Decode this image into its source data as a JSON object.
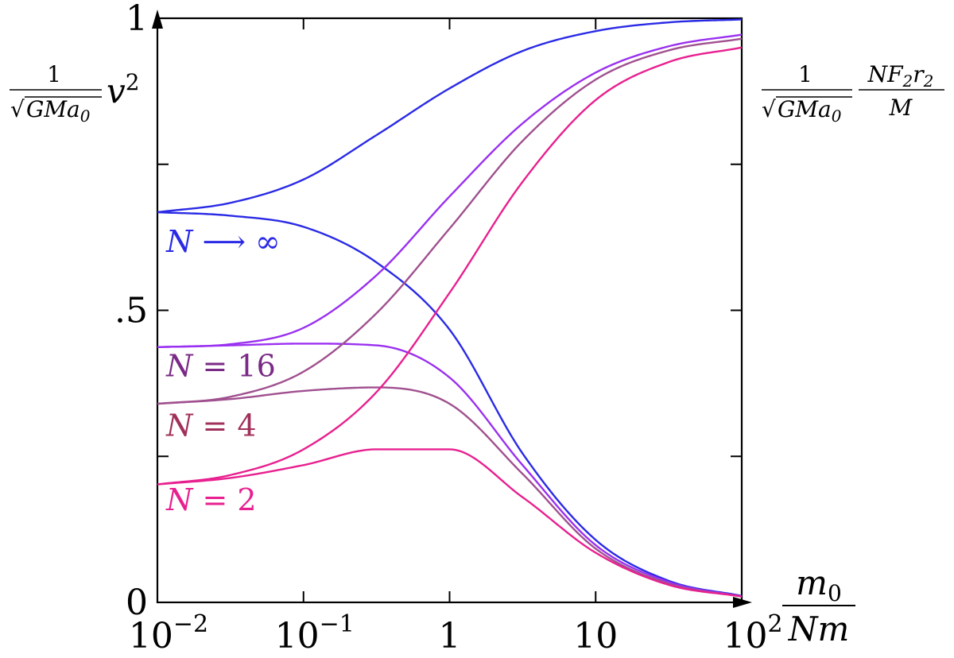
{
  "chart_data": {
    "type": "line",
    "x_scale": "log",
    "xlim": [
      0.01,
      100
    ],
    "ylim": [
      0,
      1
    ],
    "grid": false,
    "x_ticks": [
      {
        "value": 0.01,
        "label_base": "10",
        "label_exp": "−2"
      },
      {
        "value": 0.1,
        "label_base": "10",
        "label_exp": "−1"
      },
      {
        "value": 1,
        "label_base": "1",
        "label_exp": ""
      },
      {
        "value": 10,
        "label_base": "10",
        "label_exp": ""
      },
      {
        "value": 100,
        "label_base": "10",
        "label_exp": "2"
      }
    ],
    "y_ticks": [
      {
        "value": 0,
        "label": "0"
      },
      {
        "value": 0.25,
        "label": ""
      },
      {
        "value": 0.5,
        "label": ".5"
      },
      {
        "value": 0.75,
        "label": ""
      },
      {
        "value": 1,
        "label": "1"
      }
    ],
    "xlabel": {
      "numerator": "m",
      "numerator_sub": "0",
      "denominator": "Nm"
    },
    "ylabel_left": {
      "coef_num": "1",
      "coef_den": "GMa",
      "coef_den_sub": "0",
      "var": "v",
      "var_exp": "2"
    },
    "ylabel_right": {
      "coef_num": "1",
      "coef_den": "GMa",
      "coef_den_sub": "0",
      "num": "NF",
      "num_sub1": "2",
      "num_mid": "r",
      "num_sub2": "2",
      "den": "M"
    },
    "x_samples": [
      0.01,
      0.0316,
      0.1,
      0.316,
      1,
      3.16,
      10,
      31.6,
      100
    ],
    "series": [
      {
        "label": "N ⟶ ∞",
        "color": "#2a2ae6",
        "kind": "v2",
        "values": [
          0.668,
          0.684,
          0.724,
          0.8,
          0.88,
          0.944,
          0.978,
          0.993,
          0.998
        ]
      },
      {
        "label": "N ⟶ ∞",
        "color": "#2a2ae6",
        "kind": "force",
        "values": [
          0.668,
          0.662,
          0.643,
          0.582,
          0.467,
          0.255,
          0.107,
          0.037,
          0.011
        ]
      },
      {
        "label": "N = 16",
        "color": "#9a30f0",
        "kind": "v2",
        "values": [
          0.437,
          0.442,
          0.47,
          0.56,
          0.695,
          0.82,
          0.907,
          0.952,
          0.972
        ]
      },
      {
        "label": "N = 16",
        "color": "#9a30f0",
        "kind": "force",
        "values": [
          0.437,
          0.44,
          0.443,
          0.44,
          0.385,
          0.235,
          0.098,
          0.035,
          0.01
        ]
      },
      {
        "label": "N = 4",
        "color": "#a0508f",
        "kind": "v2",
        "values": [
          0.34,
          0.352,
          0.395,
          0.495,
          0.64,
          0.79,
          0.895,
          0.945,
          0.965
        ]
      },
      {
        "label": "N = 4",
        "color": "#a0508f",
        "kind": "force",
        "values": [
          0.34,
          0.348,
          0.362,
          0.368,
          0.34,
          0.22,
          0.092,
          0.032,
          0.01
        ]
      },
      {
        "label": "N = 2",
        "color": "#e8208f",
        "kind": "v2",
        "values": [
          0.202,
          0.218,
          0.262,
          0.36,
          0.53,
          0.72,
          0.86,
          0.925,
          0.95
        ]
      },
      {
        "label": "N = 2",
        "color": "#e8208f",
        "kind": "force",
        "values": [
          0.202,
          0.213,
          0.235,
          0.262,
          0.262,
          0.18,
          0.085,
          0.03,
          0.01
        ]
      }
    ],
    "annotations": [
      {
        "text": "N ⟶ ∞",
        "color": "#2a2ae6",
        "anchor_x": 0.0115,
        "anchor_y": 0.6
      },
      {
        "text": "N = 16",
        "color": "#7a2a86",
        "anchor_x": 0.0115,
        "anchor_y": 0.387
      },
      {
        "text": "N = 4",
        "color": "#a0305a",
        "anchor_x": 0.0115,
        "anchor_y": 0.285
      },
      {
        "text": "N = 2",
        "color": "#e8208f",
        "anchor_x": 0.0115,
        "anchor_y": 0.158
      }
    ]
  }
}
